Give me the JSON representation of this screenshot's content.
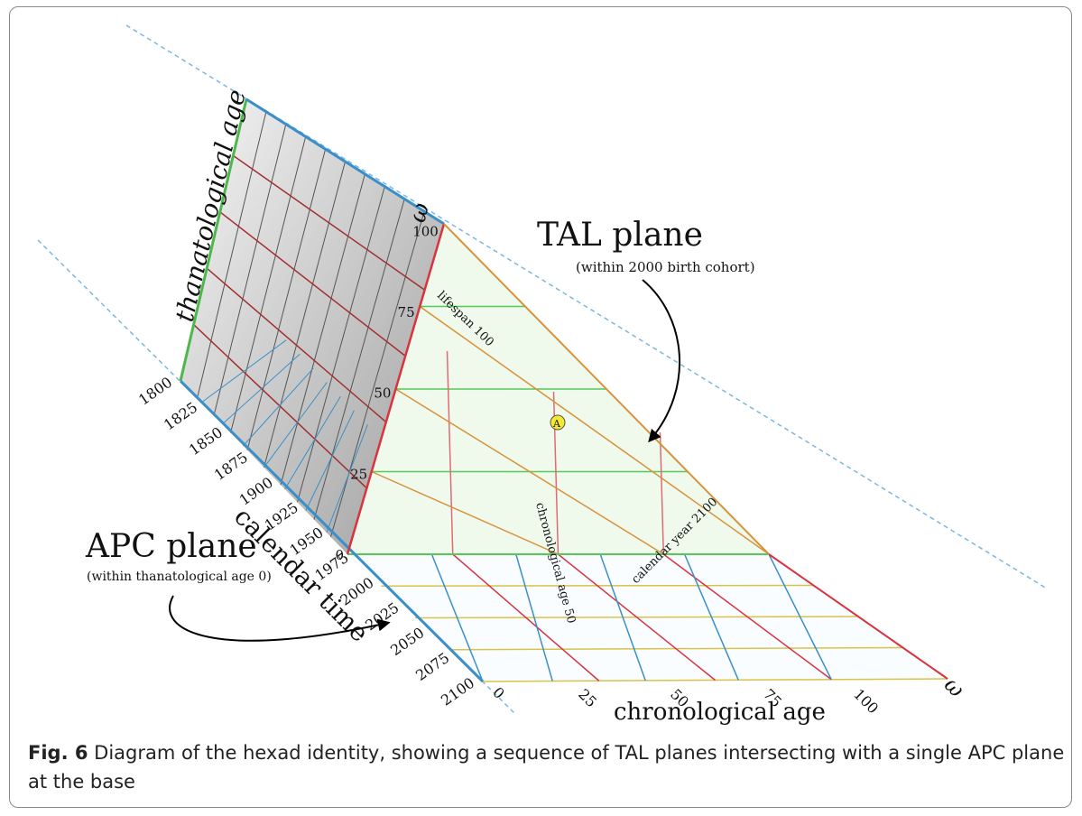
{
  "labels": {
    "thanatological_age": "thanatological age",
    "calendar_time": "calendar time",
    "chronological_age": "chronological age",
    "tal_plane": "TAL plane",
    "tal_plane_note": "(within 2000 birth cohort)",
    "apc_plane": "APC plane",
    "apc_plane_note": "(within thanatological age 0)",
    "lifespan_line": "lifespan 100",
    "chronological_line": "chronological age 50",
    "calendar_line": "calendar year 2100",
    "point_a": "A",
    "omega": "ω"
  },
  "calendar_ticks": [
    "1800",
    "1825",
    "1850",
    "1875",
    "1900",
    "1925",
    "1950",
    "1975",
    "2000",
    "2025",
    "2050",
    "2075",
    "2100"
  ],
  "chronological_ticks": [
    "0",
    "25",
    "50",
    "75",
    "100"
  ],
  "thanatological_ticks": [
    "0",
    "25",
    "50",
    "75",
    "100"
  ],
  "colors": {
    "calendar_axis": "#3a8fc9",
    "thanatological_axis": "#4cb84c",
    "lifespan": "#d8343f",
    "chronological": "#e06a72",
    "calendar_year": "#d9913a",
    "apc_grid_yellow": "#d8c24a",
    "tal_fill": "#eaf8e6",
    "dashed_guide": "#7ab8e0"
  },
  "caption": {
    "label": "Fig. 6",
    "text": "Diagram of the hexad identity, showing a sequence of TAL planes intersecting with a single APC plane at the base"
  }
}
